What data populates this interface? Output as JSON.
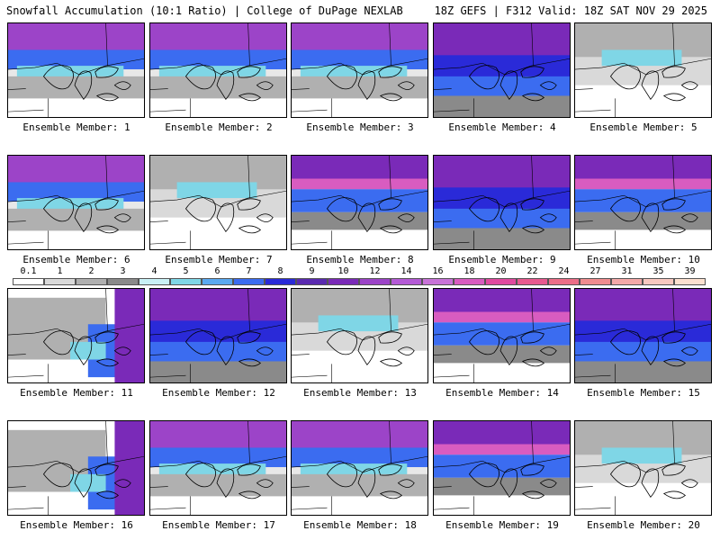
{
  "header": {
    "left_title": "Snowfall Accumulation (10:1 Ratio) | College of DuPage NEXLAB",
    "right_title": "18Z GEFS | F312 Valid: 18Z SAT NOV 29 2025"
  },
  "colorbar": {
    "labels": [
      "0.1",
      "1",
      "2",
      "3",
      "4",
      "5",
      "6",
      "7",
      "8",
      "9",
      "10",
      "12",
      "14",
      "16",
      "18",
      "20",
      "22",
      "24",
      "27",
      "31",
      "35",
      "39"
    ],
    "colors": [
      "#ffffff",
      "#d9d9d9",
      "#b0b0b0",
      "#8a8a8a",
      "#c9f0f5",
      "#7fd6e6",
      "#5aa8f0",
      "#3b6cf0",
      "#2a2ad8",
      "#5a2ab0",
      "#7a2ab8",
      "#9c44c8",
      "#b45ad6",
      "#c873d8",
      "#d85cc0",
      "#e04aa0",
      "#e85a90",
      "#ec6e88",
      "#f08c90",
      "#f4a8a8",
      "#f8c8c0",
      "#fce0d0"
    ]
  },
  "panels": [
    {
      "label": "Ensemble Member: 1",
      "tone": "north"
    },
    {
      "label": "Ensemble Member: 2",
      "tone": "north"
    },
    {
      "label": "Ensemble Member: 3",
      "tone": "north"
    },
    {
      "label": "Ensemble Member: 4",
      "tone": "heavy"
    },
    {
      "label": "Ensemble Member: 5",
      "tone": "light"
    },
    {
      "label": "Ensemble Member: 6",
      "tone": "north"
    },
    {
      "label": "Ensemble Member: 7",
      "tone": "light"
    },
    {
      "label": "Ensemble Member: 8",
      "tone": "band"
    },
    {
      "label": "Ensemble Member: 9",
      "tone": "heavy"
    },
    {
      "label": "Ensemble Member: 10",
      "tone": "band"
    },
    {
      "label": "Ensemble Member: 11",
      "tone": "east"
    },
    {
      "label": "Ensemble Member: 12",
      "tone": "heavy"
    },
    {
      "label": "Ensemble Member: 13",
      "tone": "light"
    },
    {
      "label": "Ensemble Member: 14",
      "tone": "band"
    },
    {
      "label": "Ensemble Member: 15",
      "tone": "heavy"
    },
    {
      "label": "Ensemble Member: 16",
      "tone": "east"
    },
    {
      "label": "Ensemble Member: 17",
      "tone": "north"
    },
    {
      "label": "Ensemble Member: 18",
      "tone": "north"
    },
    {
      "label": "Ensemble Member: 19",
      "tone": "band"
    },
    {
      "label": "Ensemble Member: 20",
      "tone": "light"
    }
  ]
}
